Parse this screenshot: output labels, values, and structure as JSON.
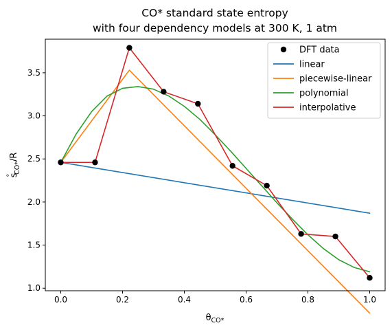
{
  "chart_data": {
    "type": "line",
    "title_line1": "CO* standard state entropy",
    "title_line2": "with four dependency models at 300 K, 1 atm",
    "xlabel_main": "θ",
    "xlabel_sub": "CO*",
    "ylabel_sup": "s",
    "ylabel_supmark": "°",
    "ylabel_sub": "CO*",
    "ylabel_tail": "/R",
    "xlim": [
      -0.05,
      1.05
    ],
    "ylim": [
      0.97,
      3.89
    ],
    "xticks": [
      0.0,
      0.2,
      0.4,
      0.6,
      0.8,
      1.0
    ],
    "xtick_labels": [
      "0.0",
      "0.2",
      "0.4",
      "0.6",
      "0.8",
      "1.0"
    ],
    "yticks": [
      1.0,
      1.5,
      2.0,
      2.5,
      3.0,
      3.5
    ],
    "ytick_labels": [
      "1.0",
      "1.5",
      "2.0",
      "2.5",
      "3.0",
      "3.5"
    ],
    "grid": false,
    "legend_position": "top-right",
    "dft_data": {
      "name": "DFT data",
      "color": "#000000",
      "x": [
        0.0,
        0.111,
        0.222,
        0.333,
        0.444,
        0.556,
        0.667,
        0.778,
        0.889,
        1.0
      ],
      "y": [
        2.46,
        2.46,
        3.79,
        3.28,
        3.14,
        2.42,
        2.19,
        1.63,
        1.6,
        1.12
      ]
    },
    "series": [
      {
        "name": "linear",
        "color": "#1f77b4",
        "x": [
          0.0,
          1.0
        ],
        "y": [
          2.46,
          1.87
        ]
      },
      {
        "name": "piecewise-linear",
        "color": "#ff7f0e",
        "x": [
          0.0,
          0.222,
          1.0
        ],
        "y": [
          2.46,
          3.53,
          0.71
        ]
      },
      {
        "name": "polynomial",
        "color": "#2ca02c",
        "x": [
          0.0,
          0.05,
          0.1,
          0.15,
          0.2,
          0.25,
          0.3,
          0.35,
          0.4,
          0.45,
          0.5,
          0.55,
          0.6,
          0.65,
          0.7,
          0.75,
          0.8,
          0.85,
          0.9,
          0.95,
          1.0
        ],
        "y": [
          2.46,
          2.79,
          3.05,
          3.23,
          3.32,
          3.34,
          3.31,
          3.23,
          3.11,
          2.96,
          2.78,
          2.59,
          2.39,
          2.19,
          1.99,
          1.8,
          1.62,
          1.46,
          1.33,
          1.24,
          1.19
        ]
      },
      {
        "name": "interpolative",
        "color": "#d62728",
        "x": [
          0.0,
          0.111,
          0.222,
          0.333,
          0.444,
          0.556,
          0.667,
          0.778,
          0.889,
          1.0
        ],
        "y": [
          2.46,
          2.46,
          3.79,
          3.28,
          3.14,
          2.42,
          2.19,
          1.63,
          1.6,
          1.12
        ]
      }
    ]
  }
}
